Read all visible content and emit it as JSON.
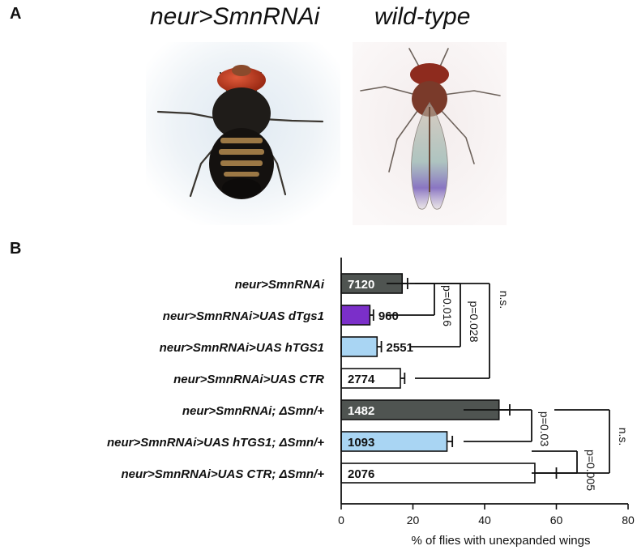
{
  "panel_a": {
    "letter": "A",
    "left_title": "neur>SmnRNAi",
    "right_title": "wild-type"
  },
  "panel_b": {
    "letter": "B"
  },
  "chart_data": {
    "type": "bar",
    "orientation": "horizontal",
    "xlabel": "% of flies  with unexpanded wings",
    "xlim": [
      0,
      80
    ],
    "xticks": [
      0,
      20,
      40,
      60,
      80
    ],
    "grid": false,
    "categories": [
      "neur>SmnRNAi",
      "neur>SmnRNAi>UAS dTgs1",
      "neur>SmnRNAi>UAS hTGS1",
      "neur>SmnRNAi>UAS CTR",
      "neur>SmnRNAi; ΔSmn/+",
      "neur>SmnRNAi>UAS hTGS1; ΔSmn/+",
      "neur>SmnRNAi>UAS CTR; ΔSmn/+"
    ],
    "values": [
      17,
      8,
      10,
      16.5,
      44,
      29.5,
      54
    ],
    "errors": [
      1.5,
      1,
      1.2,
      1.2,
      3,
      1.5,
      6
    ],
    "counts": [
      "7120",
      "960",
      "2551",
      "2774",
      "1482",
      "1093",
      "2076"
    ],
    "bar_colors": [
      "#4f5451",
      "#7b2fc9",
      "#a9d5f3",
      "#ffffff",
      "#4f5451",
      "#a9d5f3",
      "#ffffff"
    ],
    "count_label_colors": [
      "#ffffff",
      "#111111",
      "#111111",
      "#111111",
      "#ffffff",
      "#111111",
      "#111111"
    ],
    "count_inside": [
      true,
      false,
      false,
      true,
      true,
      true,
      true
    ],
    "significance": [
      {
        "label": "p=0.016",
        "from": 1,
        "to": 0
      },
      {
        "label": "p=0.028",
        "from": 2,
        "to": 0
      },
      {
        "label": "n.s.",
        "from": 3,
        "to": 0
      },
      {
        "label": "p=0.03",
        "from": 5,
        "to": 4
      },
      {
        "label": "p=0.005",
        "from": 5,
        "to": 6
      },
      {
        "label": "n.s.",
        "from": 4,
        "to": 6
      }
    ]
  }
}
